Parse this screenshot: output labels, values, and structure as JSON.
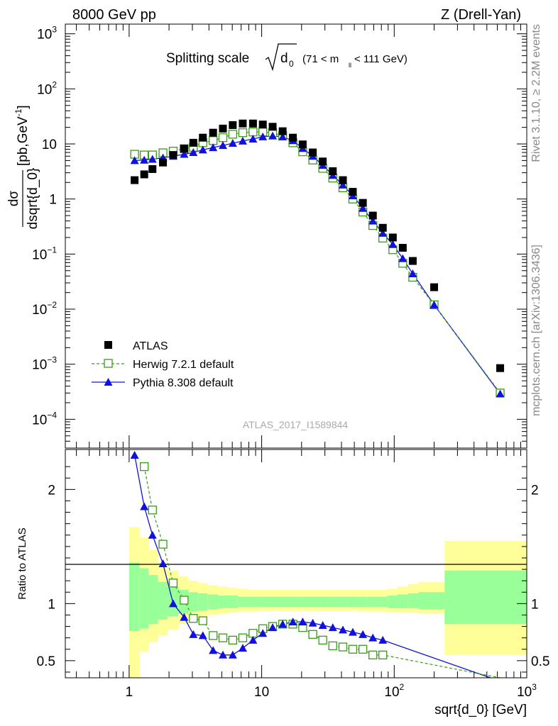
{
  "header": {
    "left": "8000 GeV pp",
    "right": "Z (Drell-Yan)",
    "side_rivet": "Rivet 3.1.10, ≥ 2.2M events",
    "side_mcplots": "mcplots.cern.ch [arXiv:1306.3436]",
    "watermark": "ATLAS_2017_I1589844"
  },
  "chart_data": [
    {
      "type": "scatter",
      "title": "Splitting scale",
      "title_sqrt": "d",
      "title_sqrt_sub": "0",
      "title_cut_pre": "(71 < m",
      "title_cut_sub": "ll",
      "title_cut_post": " < 111 GeV)",
      "ylabel_top": "dσ",
      "ylabel_bottom": "dsqrt{d_0}",
      "ylabel_unit": "[pb,GeV",
      "ylabel_unit_sup": "-1",
      "ylabel_unit_close": "]",
      "log_x": true,
      "log_y": true,
      "xlim": [
        0.33,
        1000
      ],
      "ylim": [
        3e-05,
        1500
      ],
      "y_tick_labels": [
        {
          "value": 0.0001,
          "base": "10",
          "exp": "−4"
        },
        {
          "value": 0.001,
          "base": "10",
          "exp": "−3"
        },
        {
          "value": 0.01,
          "base": "10",
          "exp": "−2"
        },
        {
          "value": 0.1,
          "base": "10",
          "exp": "−1"
        },
        {
          "value": 1,
          "base": "1",
          "exp": ""
        },
        {
          "value": 10,
          "base": "10",
          "exp": ""
        },
        {
          "value": 100,
          "base": "10",
          "exp": "2"
        },
        {
          "value": 1000,
          "base": "10",
          "exp": "3"
        }
      ],
      "legend": [
        {
          "label": "ATLAS",
          "color": "#000000",
          "marker": "square"
        },
        {
          "label": "Herwig 7.2.1 default",
          "color": "#3a9a1a",
          "marker": "open-square",
          "dashed": true
        },
        {
          "label": "Pythia 8.308 default",
          "color": "#1010e0",
          "marker": "triangle"
        }
      ],
      "legend_position": "bottom-left",
      "series": [
        {
          "name": "ATLAS",
          "x": [
            1.1,
            1.3,
            1.5,
            1.8,
            2.15,
            2.6,
            3.05,
            3.6,
            4.3,
            5.1,
            6.05,
            7.2,
            8.6,
            10.2,
            12.1,
            14.4,
            17.2,
            20.4,
            24.3,
            28.9,
            34.4,
            41.0,
            48.7,
            58.0,
            69.0,
            82.0,
            97.6,
            116,
            138,
            200,
            630
          ],
          "y": [
            2.2,
            2.8,
            3.5,
            4.6,
            6.3,
            8.2,
            10.5,
            13,
            16,
            19,
            22,
            23.5,
            23.5,
            22.5,
            20.5,
            17,
            13,
            9.8,
            7,
            4.8,
            3.2,
            2.2,
            1.35,
            0.85,
            0.5,
            0.3,
            0.2,
            0.13,
            0.075,
            0.025,
            0.00085
          ]
        },
        {
          "name": "Herwig 7.2.1 default",
          "x": [
            1.1,
            1.3,
            1.5,
            1.8,
            2.15,
            2.6,
            3.05,
            3.6,
            4.3,
            5.1,
            6.05,
            7.2,
            8.6,
            10.2,
            12.1,
            14.4,
            17.2,
            20.4,
            24.3,
            28.9,
            34.4,
            41.0,
            48.7,
            58.0,
            69.0,
            82.0,
            97.6,
            116,
            138,
            200,
            630
          ],
          "y": [
            6.5,
            6.3,
            6.3,
            6.9,
            7.4,
            8.2,
            8.7,
            10.5,
            11.5,
            13,
            15,
            16,
            16.5,
            16.5,
            16,
            14,
            10.5,
            7.2,
            5.1,
            3.6,
            2.4,
            1.6,
            1.0,
            0.58,
            0.33,
            0.195,
            0.12,
            0.068,
            0.038,
            0.012,
            0.0003
          ]
        },
        {
          "name": "Pythia 8.308 default",
          "x": [
            1.1,
            1.3,
            1.5,
            1.8,
            2.15,
            2.6,
            3.05,
            3.6,
            4.3,
            5.1,
            6.05,
            7.2,
            8.6,
            10.2,
            12.1,
            14.4,
            17.2,
            20.4,
            24.3,
            28.9,
            34.4,
            41.0,
            48.7,
            58.0,
            69.0,
            82.0,
            97.6,
            116,
            138,
            200,
            630
          ],
          "y": [
            5.0,
            5.1,
            5.3,
            5.6,
            6.0,
            6.5,
            7.0,
            7.8,
            8.6,
            9.4,
            10.3,
            11.3,
            12.3,
            13.5,
            14.0,
            13.5,
            11.5,
            8.3,
            6.0,
            4.1,
            2.7,
            1.8,
            1.15,
            0.68,
            0.4,
            0.24,
            0.15,
            0.083,
            0.044,
            0.012,
            0.00029
          ]
        }
      ]
    },
    {
      "type": "line",
      "ylabel": "Ratio to ATLAS",
      "xlabel": "sqrt{d_0} [GeV]",
      "log_x": true,
      "xlim": [
        0.33,
        1000
      ],
      "ylim": [
        0.35,
        2.35
      ],
      "x_tick_labels": [
        {
          "value": 1,
          "base": "1",
          "exp": ""
        },
        {
          "value": 10,
          "base": "10",
          "exp": ""
        },
        {
          "value": 100,
          "base": "10",
          "exp": "2"
        },
        {
          "value": 1000,
          "base": "10",
          "exp": "3"
        }
      ],
      "y_tick_labels_left": [
        "0.5",
        "1",
        "2"
      ],
      "y_tick_labels_right": [
        "0.5",
        "1",
        "2"
      ],
      "y_tick_values": [
        0.5,
        1,
        2
      ],
      "band_colors": {
        "outer": "#ffff99",
        "inner": "#99ff99"
      },
      "bins": {
        "edges": [
          1.0,
          1.2,
          1.4,
          1.65,
          1.95,
          2.35,
          2.8,
          3.3,
          3.9,
          4.7,
          5.6,
          6.6,
          7.9,
          9.4,
          11.1,
          13.2,
          15.7,
          18.7,
          22.3,
          26.5,
          31.5,
          37.5,
          44.6,
          53.0,
          63.0,
          75.0,
          89.5,
          106,
          127,
          152,
          240,
          1000
        ],
        "outer_low": [
          0.35,
          0.58,
          0.66,
          0.72,
          0.77,
          0.82,
          0.85,
          0.88,
          0.9,
          0.91,
          0.92,
          0.93,
          0.93,
          0.94,
          0.94,
          0.94,
          0.94,
          0.94,
          0.94,
          0.94,
          0.94,
          0.94,
          0.94,
          0.93,
          0.93,
          0.93,
          0.92,
          0.92,
          0.92,
          0.91,
          0.55
        ],
        "outer_high": [
          1.67,
          1.58,
          1.47,
          1.36,
          1.29,
          1.24,
          1.2,
          1.18,
          1.16,
          1.15,
          1.14,
          1.13,
          1.12,
          1.12,
          1.12,
          1.12,
          1.12,
          1.12,
          1.12,
          1.12,
          1.12,
          1.12,
          1.12,
          1.12,
          1.12,
          1.12,
          1.13,
          1.15,
          1.17,
          1.19,
          1.55
        ],
        "inner_low": [
          0.76,
          0.78,
          0.82,
          0.86,
          0.89,
          0.91,
          0.93,
          0.94,
          0.95,
          0.96,
          0.96,
          0.97,
          0.97,
          0.97,
          0.97,
          0.97,
          0.97,
          0.97,
          0.97,
          0.97,
          0.97,
          0.97,
          0.97,
          0.97,
          0.97,
          0.97,
          0.96,
          0.96,
          0.96,
          0.95,
          0.82
        ],
        "inner_high": [
          1.36,
          1.31,
          1.25,
          1.19,
          1.15,
          1.12,
          1.1,
          1.09,
          1.08,
          1.07,
          1.07,
          1.06,
          1.06,
          1.06,
          1.06,
          1.06,
          1.06,
          1.06,
          1.06,
          1.06,
          1.06,
          1.06,
          1.06,
          1.06,
          1.06,
          1.06,
          1.07,
          1.08,
          1.09,
          1.1,
          1.29
        ]
      },
      "series": [
        {
          "name": "Herwig 7.2.1 default",
          "x": [
            1.3,
            1.5,
            1.8,
            2.15,
            2.6,
            3.05,
            3.6,
            4.3,
            5.1,
            6.05,
            7.2,
            8.6,
            10.2,
            12.1,
            14.4,
            17.2,
            20.4,
            24.3,
            28.9,
            34.4,
            41.0,
            48.7,
            58.0,
            69.0,
            82.0,
            630
          ],
          "y": [
            2.2,
            1.82,
            1.52,
            1.18,
            1.03,
            0.87,
            0.85,
            0.72,
            0.7,
            0.68,
            0.7,
            0.74,
            0.78,
            0.8,
            0.82,
            0.82,
            0.79,
            0.73,
            0.68,
            0.63,
            0.62,
            0.6,
            0.6,
            0.55,
            0.55,
            0.35
          ]
        },
        {
          "name": "Pythia 8.308 default",
          "x": [
            1.1,
            1.3,
            1.5,
            1.8,
            2.15,
            2.6,
            3.05,
            3.6,
            4.3,
            5.1,
            6.05,
            7.2,
            8.6,
            10.2,
            12.1,
            14.4,
            17.2,
            20.4,
            24.3,
            28.9,
            34.4,
            41.0,
            48.7,
            58.0,
            69.0,
            82.0,
            630
          ],
          "y": [
            2.3,
            1.85,
            1.6,
            1.35,
            1.0,
            0.88,
            0.73,
            0.72,
            0.59,
            0.55,
            0.55,
            0.61,
            0.68,
            0.74,
            0.79,
            0.82,
            0.84,
            0.84,
            0.83,
            0.81,
            0.79,
            0.77,
            0.75,
            0.73,
            0.7,
            0.68,
            0.32
          ]
        }
      ]
    }
  ]
}
